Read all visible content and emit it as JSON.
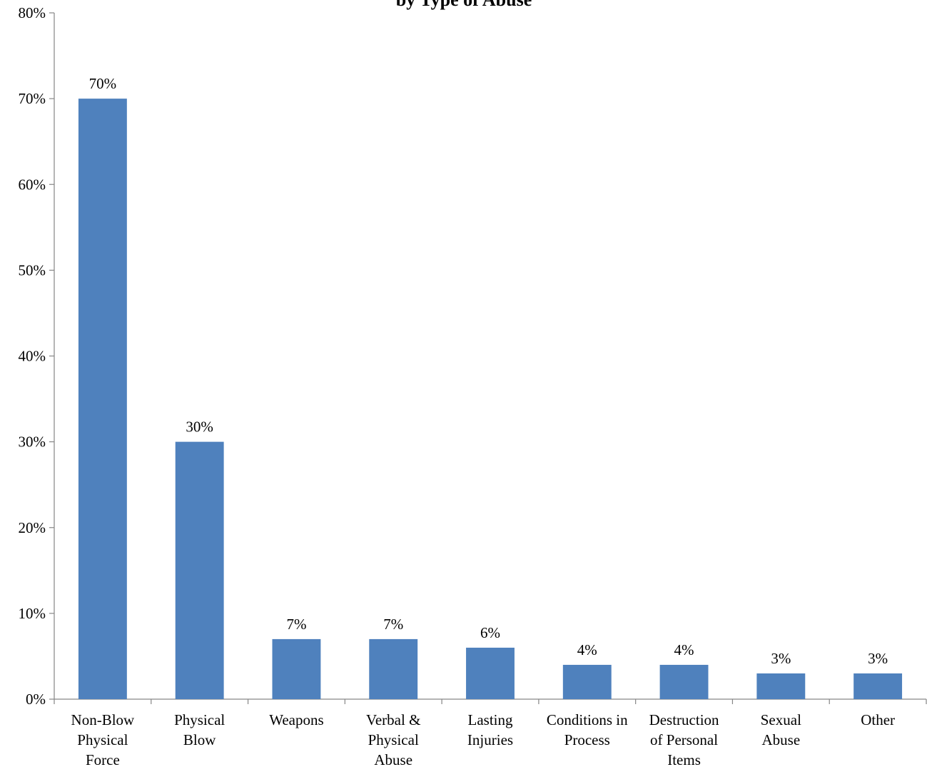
{
  "chart_data": {
    "type": "bar",
    "title": "by Type of Abuse",
    "xlabel": "",
    "ylabel": "",
    "ylim": [
      0,
      0.8
    ],
    "y_ticks": [
      "0%",
      "10%",
      "20%",
      "30%",
      "40%",
      "50%",
      "60%",
      "70%",
      "80%"
    ],
    "categories": [
      [
        "Non-Blow",
        "Physical",
        "Force"
      ],
      [
        "Physical",
        "Blow"
      ],
      [
        "Weapons"
      ],
      [
        "Verbal &",
        "Physical",
        "Abuse"
      ],
      [
        "Lasting",
        "Injuries"
      ],
      [
        "Conditions in",
        "Process"
      ],
      [
        "Destruction",
        "of Personal",
        "Items"
      ],
      [
        "Sexual",
        "Abuse"
      ],
      [
        "Other"
      ]
    ],
    "values": [
      0.7,
      0.3,
      0.07,
      0.07,
      0.06,
      0.04,
      0.04,
      0.03,
      0.03
    ],
    "data_labels": [
      "70%",
      "30%",
      "7%",
      "7%",
      "6%",
      "4%",
      "4%",
      "3%",
      "3%"
    ],
    "bar_color": "#4f81bd",
    "grid": false,
    "legend": "none"
  }
}
